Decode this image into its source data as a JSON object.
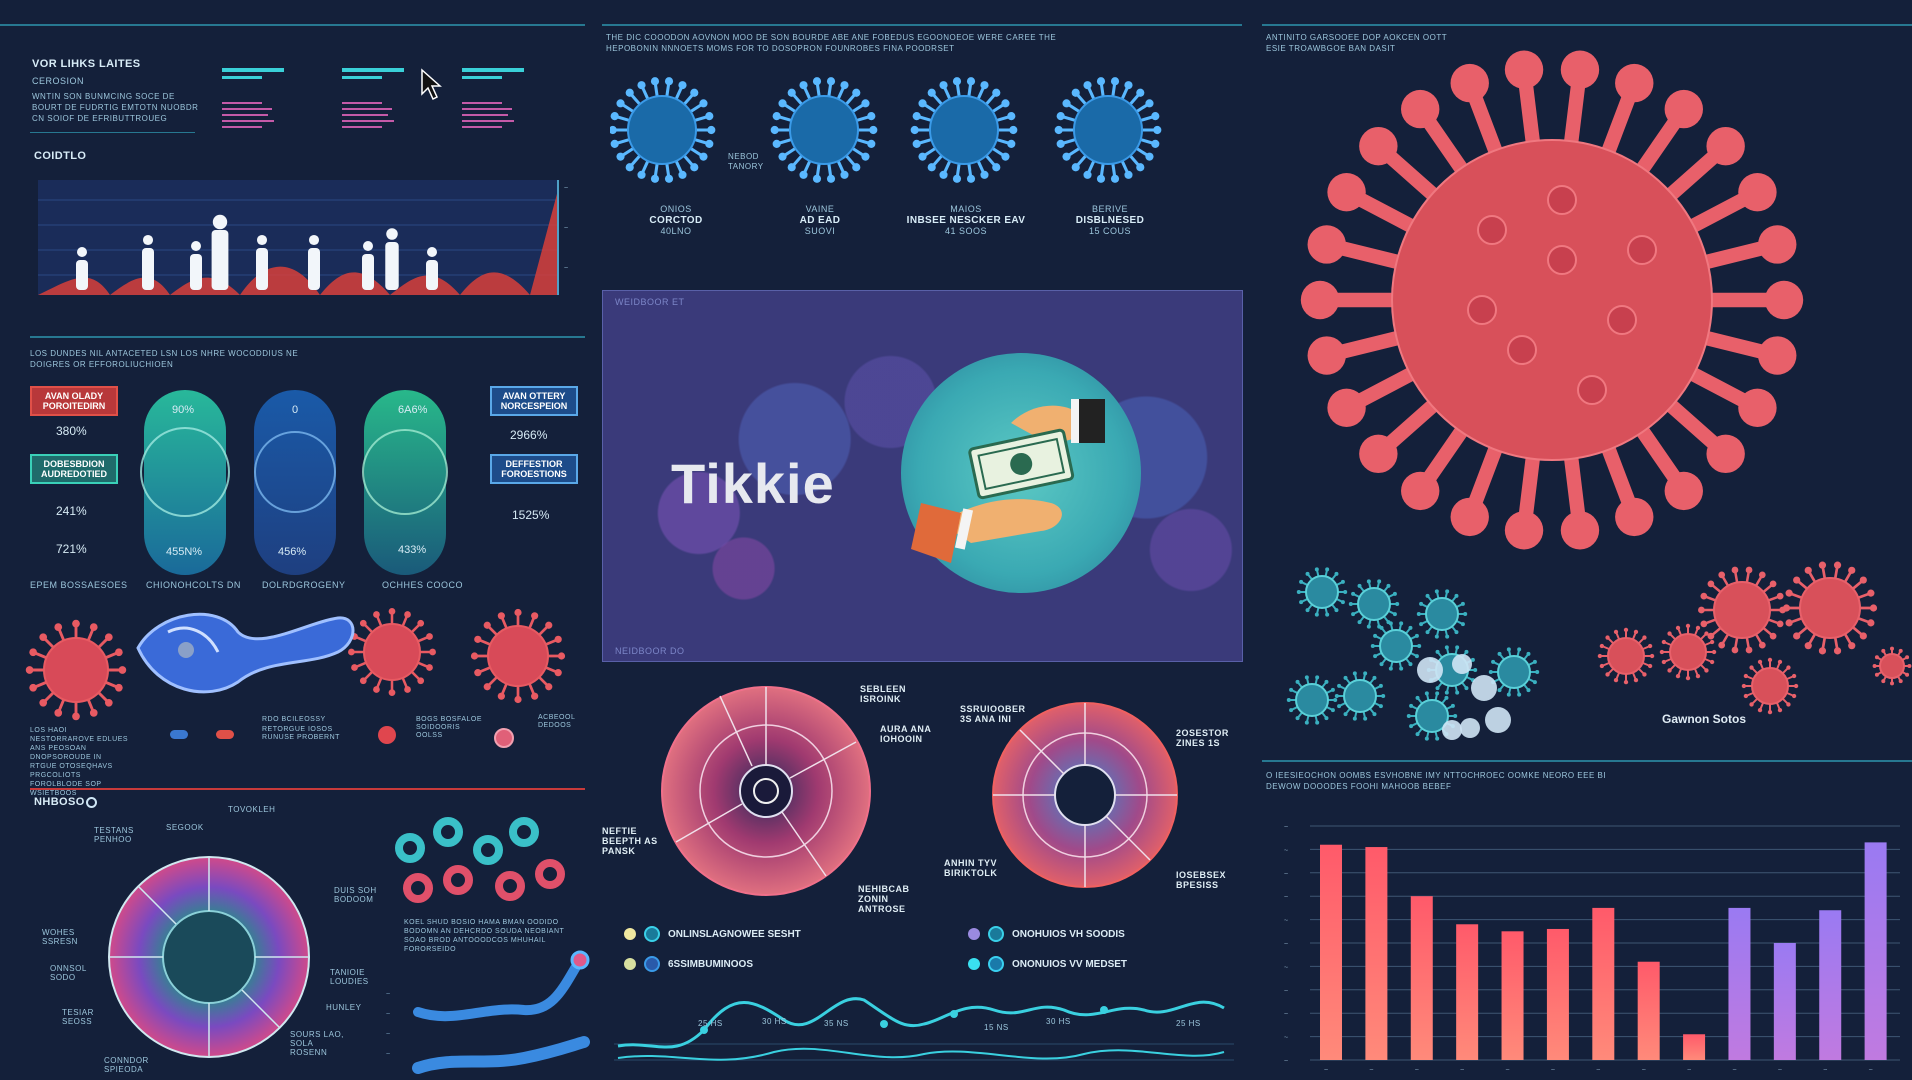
{
  "brand": "Tikkie",
  "left_top": {
    "title": "VOR LIHKS LAITES",
    "subtitle": "CEROSION",
    "body": "WNTIN SON BUNMCING SOCE DE BOURT DE FUDRTIG EMTOTN NUOBDR CN SOIOF DE EFRIBUTTROUEG",
    "section_label": "COIDTLO"
  },
  "left_mid": {
    "caption": "LOS DUNDES NIL ANTACETED LSN LOS NHRE WOCODDIUS NE DOIGRES OR EFFOROLIUCHIOEN",
    "box_labels": [
      "AVAN OLADY POROITEDIRN",
      "DOBESBDION AUDREDOTIED",
      "AVAN OTTERY NORCESPEION",
      "DEFFESTIOR FOROESTIONS"
    ],
    "left_pcts": [
      "380%",
      "241%",
      "721%"
    ],
    "right_pcts": [
      "2966%",
      "1525%"
    ],
    "oval_top_values": [
      "90%",
      "0",
      "6A6%"
    ],
    "oval_bottom_values": [
      "455N%",
      "456%",
      "433%"
    ],
    "oval_captions": [
      "EPEM BOSSAESOES",
      "CHIONOHCOLTS DN",
      "DOLRDGROGENY",
      "OCHHES COOCO"
    ]
  },
  "left_legend": {
    "caption": "LOS HAOI NESTORRAROVE EDLUES ANS PEOSOAN DNOPSOROUDE IN RTGUE OTOSEQHAVS PRGCOLIOTS FOROLBLODE SOP WSIETBOOS",
    "items": [
      "RDO BCILEOSSY",
      "RETORGUE IOSOS RUNUSE PROBERNT",
      "BOGS BOSFALOE SOIDOORIS OOLSS",
      "ACBEOOL DEDOOS"
    ]
  },
  "left_bottom": {
    "section_label": "NHBOSO",
    "caption": "KOEL SHUD BOSIO HAMA BMAN OODIDO BODOMN AN DEHCRDO SOUDA NEOBIANT SOAO BROD ANTOOODCOS MHUHAIL FORORSEIDO",
    "donut_labels": [
      "TOVOKLEH",
      "SEGOOK",
      "TESTANS PENHOO",
      "DUIS SOH BODOOM",
      "WOHES SSRESN",
      "ONNSOL SODO",
      "TANIOIE LOUDIES",
      "HUNLEY",
      "TESIAR SEOSS",
      "SOURS LAO, SOLA ROSENN",
      "CONNDOR SPIEODA"
    ]
  },
  "mid_top": {
    "caption": "THE DIC COOODON AOVNON MOO DE SON BOURDE ABE ANE FOBEDUS EGOONOEOE WERE CAREE THE HEPOBONIN NNNOETS MOMS FOR TO DOSOPRON FOUNROBES FINA POODRSET",
    "virus_cards": [
      {
        "top": "ONIOS",
        "title": "CORCTOD",
        "sub": "40LNO"
      },
      {
        "top": "VAINE",
        "title": "AD EAD",
        "sub": "SUOVI"
      },
      {
        "top": "MAIOS",
        "title": "INBSEE NESCKER EAV",
        "sub": "41 SOOS"
      },
      {
        "top": "BERIVE",
        "title": "DISBLNESED",
        "sub": "15 COUS"
      }
    ],
    "side_label": "NEBOD TANORY"
  },
  "center_box": {
    "header": "WEIDBOOR ET",
    "footer": "NEIDBOOR DO"
  },
  "mid_bottom": {
    "pie1_labels": [
      "SEBLEEN ISROINK",
      "AURA ANA IOHOOIN",
      "NEFTIE BEEPTH AS PANSK",
      "NEHIBCAB ZONIN ANTROSE"
    ],
    "pie2_labels": [
      "SSRUIOOBER 3S ANA INI",
      "2OSESTOR ZINES 1S",
      "ANHIN TYV BIRIKTOLK",
      "IOSEBSEX BPESISS"
    ],
    "legend": [
      "ONLINSLAGNOWEE SESHT",
      "6SSIMBUMINOOS",
      "ONOHUIOS VH SOODIS",
      "ONONUIOS VV MEDSET"
    ],
    "wave_labels": [
      "25 HS",
      "30 HS",
      "35 NS",
      "15 NS",
      "30 HS",
      "25 HS"
    ]
  },
  "right_top": {
    "caption": "ANTINITO GARSOOEE DOP AOKCEN OOTT ESIE TROAWBGOE BAN DASIT",
    "group_label": "Gawnon Sotos"
  },
  "right_chart": {
    "caption": "O IEESIEOCHON OOMBS ESVHOBNE IMY NTTOCHROEC OOMKE NEORO EEE BI DEWOW DOOODES FOOHI MAHOOB BEBEF"
  },
  "chart_data": [
    {
      "type": "bar",
      "title": "",
      "values": [
        5,
        7,
        6,
        10,
        7,
        7,
        6,
        8,
        5
      ]
    },
    {
      "type": "bar",
      "title": "",
      "values": [
        92,
        91,
        70,
        58,
        55,
        56,
        65,
        42,
        11,
        65,
        50,
        64,
        93
      ]
    }
  ],
  "colors": {
    "bg": "#14203a",
    "accent_teal": "#2c8fa8",
    "virus_red": "#e0505a",
    "virus_blue": "#3aa0d8",
    "bar_red": "#ff6b78",
    "bar_purple": "#a07cf2"
  }
}
